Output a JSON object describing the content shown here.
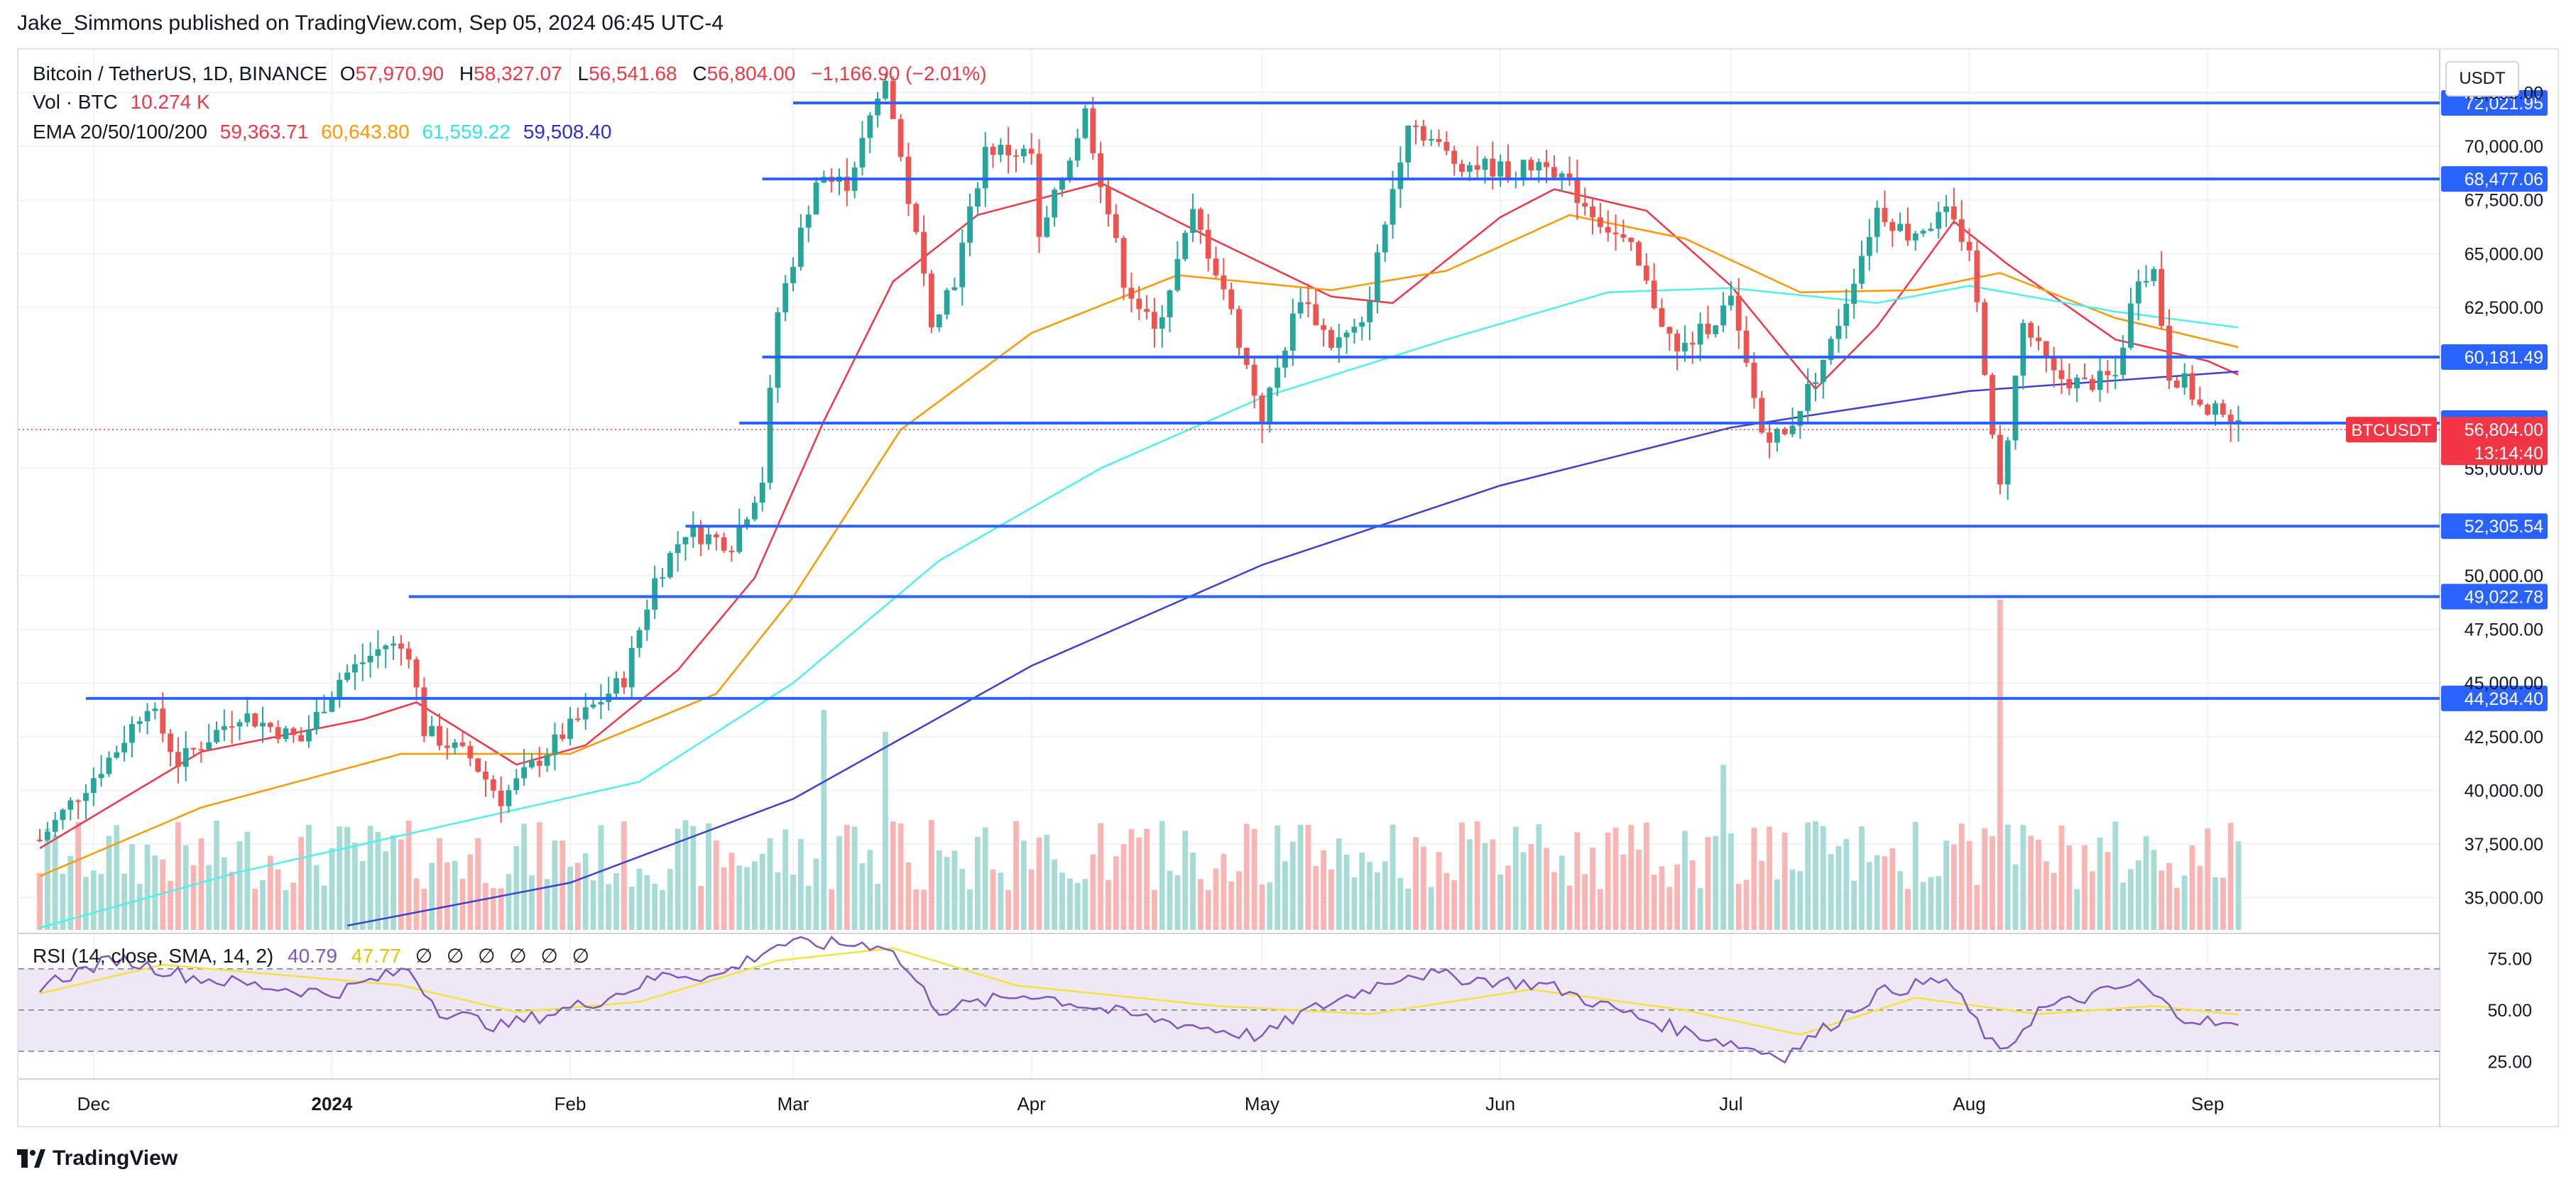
{
  "header": {
    "publisher": "Jake_Simmons published on TradingView.com, Sep 05, 2024 06:45 UTC-4"
  },
  "legend": {
    "symbol": "Bitcoin / TetherUS, 1D, BINANCE",
    "open_label": "O",
    "open": "57,970.90",
    "high_label": "H",
    "high": "58,327.07",
    "low_label": "L",
    "low": "56,541.68",
    "close_label": "C",
    "close": "56,804.00",
    "change": "−1,166.90 (−2.01%)",
    "volume_label": "Vol · BTC",
    "volume": "10.274 K",
    "ema_label": "EMA 20/50/100/200",
    "ema20": "59,363.71",
    "ema50": "60,643.80",
    "ema100": "61,559.22",
    "ema200": "59,508.40"
  },
  "rsi_legend": {
    "label": "RSI (14, close, SMA, 14, 2)",
    "rsi": "40.79",
    "sma": "47.77",
    "empty_1": "∅",
    "empty_2": "∅",
    "empty_3": "∅",
    "empty_4": "∅",
    "empty_5": "∅",
    "empty_6": "∅"
  },
  "currency": "USDT",
  "brand": "TradingView",
  "colors": {
    "up": "#26a69a",
    "down": "#ef5350",
    "ema20": "#f23645",
    "ema50": "#ff9800",
    "ema100": "#4df0f0",
    "ema200": "#3f3fd6",
    "level": "#2962ff",
    "rsi": "#7e57c2",
    "rsi_sma": "#f5e23a",
    "rsi_band": "#ede7f6",
    "price_tag": "#f23645"
  },
  "chart_data": {
    "type": "candlestick",
    "symbol": "BTCUSDT",
    "interval": "1D",
    "x_range": [
      "2023-11-24",
      "2024-10-01"
    ],
    "y_range": [
      33500,
      74500
    ],
    "y_ticks": [
      35000,
      37500,
      40000,
      42500,
      45000,
      47500,
      50000,
      55000,
      62500,
      65000,
      67500,
      70000,
      72500
    ],
    "y_tick_labels": [
      "35,000.00",
      "37,500.00",
      "40,000.00",
      "42,500.00",
      "45,000.00",
      "47,500.00",
      "50,000.00",
      "55,000.00",
      "62,500.00",
      "65,000.00",
      "67,500.00",
      "70,000.00",
      "72,500.00"
    ],
    "x_labels": [
      {
        "date": "2023-12-01",
        "label": "Dec",
        "bold": false
      },
      {
        "date": "2024-01-01",
        "label": "2024",
        "bold": true
      },
      {
        "date": "2024-02-01",
        "label": "Feb",
        "bold": false
      },
      {
        "date": "2024-03-01",
        "label": "Mar",
        "bold": false
      },
      {
        "date": "2024-04-01",
        "label": "Apr",
        "bold": false
      },
      {
        "date": "2024-05-01",
        "label": "May",
        "bold": false
      },
      {
        "date": "2024-06-01",
        "label": "Jun",
        "bold": false
      },
      {
        "date": "2024-07-01",
        "label": "Jul",
        "bold": false
      },
      {
        "date": "2024-08-01",
        "label": "Aug",
        "bold": false
      },
      {
        "date": "2024-09-01",
        "label": "Sep",
        "bold": false
      }
    ],
    "price_path": [
      [
        "2023-11-24",
        37700
      ],
      [
        "2023-12-04",
        41900
      ],
      [
        "2023-12-08",
        44100
      ],
      [
        "2023-12-12",
        41300
      ],
      [
        "2023-12-20",
        43600
      ],
      [
        "2023-12-28",
        42300
      ],
      [
        "2024-01-02",
        45200
      ],
      [
        "2024-01-08",
        46800
      ],
      [
        "2024-01-11",
        46500
      ],
      [
        "2024-01-13",
        42800
      ],
      [
        "2024-01-19",
        41500
      ],
      [
        "2024-01-23",
        39600
      ],
      [
        "2024-01-31",
        42600
      ],
      [
        "2024-02-08",
        45200
      ],
      [
        "2024-02-12",
        49800
      ],
      [
        "2024-02-16",
        52100
      ],
      [
        "2024-02-22",
        51500
      ],
      [
        "2024-02-26",
        54500
      ],
      [
        "2024-02-28",
        62300
      ],
      [
        "2024-03-04",
        68400
      ],
      [
        "2024-03-08",
        68300
      ],
      [
        "2024-03-13",
        73100
      ],
      [
        "2024-03-19",
        62000
      ],
      [
        "2024-03-22",
        63800
      ],
      [
        "2024-03-26",
        69900
      ],
      [
        "2024-04-01",
        69600
      ],
      [
        "2024-04-02",
        65500
      ],
      [
        "2024-04-08",
        71600
      ],
      [
        "2024-04-13",
        63800
      ],
      [
        "2024-04-17",
        61300
      ],
      [
        "2024-04-22",
        66800
      ],
      [
        "2024-04-26",
        63400
      ],
      [
        "2024-05-01",
        57300
      ],
      [
        "2024-05-06",
        63100
      ],
      [
        "2024-05-10",
        60800
      ],
      [
        "2024-05-14",
        61500
      ],
      [
        "2024-05-20",
        71300
      ],
      [
        "2024-05-26",
        69300
      ],
      [
        "2024-06-03",
        68800
      ],
      [
        "2024-06-07",
        69400
      ],
      [
        "2024-06-12",
        67300
      ],
      [
        "2024-06-18",
        65100
      ],
      [
        "2024-06-24",
        60300
      ],
      [
        "2024-07-01",
        62700
      ],
      [
        "2024-07-05",
        56700
      ],
      [
        "2024-07-08",
        56500
      ],
      [
        "2024-07-14",
        60800
      ],
      [
        "2024-07-20",
        67100
      ],
      [
        "2024-07-24",
        65900
      ],
      [
        "2024-07-29",
        66800
      ],
      [
        "2024-08-01",
        65300
      ],
      [
        "2024-08-05",
        54100
      ],
      [
        "2024-08-08",
        61700
      ],
      [
        "2024-08-12",
        59300
      ],
      [
        "2024-08-16",
        58900
      ],
      [
        "2024-08-20",
        59300
      ],
      [
        "2024-08-23",
        64100
      ],
      [
        "2024-08-25",
        64200
      ],
      [
        "2024-08-27",
        59400
      ],
      [
        "2024-08-29",
        59000
      ],
      [
        "2024-09-01",
        57300
      ],
      [
        "2024-09-03",
        57900
      ],
      [
        "2024-09-05",
        56804
      ]
    ],
    "ema_paths": {
      "EMA 20": [
        [
          "2023-11-24",
          37300
        ],
        [
          "2023-12-15",
          41800
        ],
        [
          "2024-01-05",
          43300
        ],
        [
          "2024-01-12",
          44100
        ],
        [
          "2024-01-25",
          41200
        ],
        [
          "2024-02-03",
          42100
        ],
        [
          "2024-02-15",
          45600
        ],
        [
          "2024-02-25",
          49900
        ],
        [
          "2024-03-05",
          57200
        ],
        [
          "2024-03-14",
          63700
        ],
        [
          "2024-03-25",
          66800
        ],
        [
          "2024-04-10",
          68300
        ],
        [
          "2024-04-25",
          65600
        ],
        [
          "2024-05-10",
          63000
        ],
        [
          "2024-05-18",
          62700
        ],
        [
          "2024-06-01",
          66700
        ],
        [
          "2024-06-08",
          68000
        ],
        [
          "2024-06-20",
          67000
        ],
        [
          "2024-07-01",
          63500
        ],
        [
          "2024-07-12",
          58700
        ],
        [
          "2024-07-20",
          61600
        ],
        [
          "2024-07-30",
          66500
        ],
        [
          "2024-08-06",
          64500
        ],
        [
          "2024-08-20",
          61000
        ],
        [
          "2024-09-01",
          60000
        ],
        [
          "2024-09-05",
          59364
        ]
      ],
      "EMA 50": [
        [
          "2023-11-24",
          36000
        ],
        [
          "2023-12-15",
          39200
        ],
        [
          "2024-01-10",
          41700
        ],
        [
          "2024-02-01",
          41700
        ],
        [
          "2024-02-20",
          44500
        ],
        [
          "2024-03-01",
          49000
        ],
        [
          "2024-03-15",
          56800
        ],
        [
          "2024-04-01",
          61300
        ],
        [
          "2024-04-20",
          64000
        ],
        [
          "2024-05-10",
          63300
        ],
        [
          "2024-05-25",
          64200
        ],
        [
          "2024-06-10",
          66800
        ],
        [
          "2024-06-25",
          65700
        ],
        [
          "2024-07-10",
          63200
        ],
        [
          "2024-07-25",
          63300
        ],
        [
          "2024-08-05",
          64100
        ],
        [
          "2024-08-20",
          62000
        ],
        [
          "2024-09-05",
          60644
        ]
      ],
      "EMA 100": [
        [
          "2023-11-24",
          33600
        ],
        [
          "2023-12-20",
          36200
        ],
        [
          "2024-01-20",
          38700
        ],
        [
          "2024-02-10",
          40400
        ],
        [
          "2024-03-01",
          45000
        ],
        [
          "2024-03-20",
          50700
        ],
        [
          "2024-04-10",
          55000
        ],
        [
          "2024-05-01",
          58300
        ],
        [
          "2024-05-25",
          61000
        ],
        [
          "2024-06-15",
          63200
        ],
        [
          "2024-07-01",
          63400
        ],
        [
          "2024-07-20",
          62700
        ],
        [
          "2024-08-01",
          63500
        ],
        [
          "2024-08-20",
          62300
        ],
        [
          "2024-09-05",
          61559
        ]
      ],
      "EMA 200": [
        [
          "2024-01-03",
          33700
        ],
        [
          "2024-02-01",
          35700
        ],
        [
          "2024-03-01",
          39600
        ],
        [
          "2024-04-01",
          45800
        ],
        [
          "2024-05-01",
          50500
        ],
        [
          "2024-06-01",
          54200
        ],
        [
          "2024-07-01",
          56900
        ],
        [
          "2024-08-01",
          58600
        ],
        [
          "2024-09-05",
          59508
        ]
      ]
    },
    "levels": [
      {
        "value": 72021.95,
        "label": "72,021.95",
        "from": "2024-03-01"
      },
      {
        "value": 68477.06,
        "label": "68,477.06",
        "from": "2024-02-26"
      },
      {
        "value": 60181.49,
        "label": "60,181.49",
        "from": "2024-02-26"
      },
      {
        "value": 57108.03,
        "label": "57,108.03",
        "from": "2024-02-23"
      },
      {
        "value": 52305.54,
        "label": "52,305.54",
        "from": "2024-02-16"
      },
      {
        "value": 49022.78,
        "label": "49,022.78",
        "from": "2024-01-11"
      },
      {
        "value": 44284.4,
        "label": "44,284.40",
        "from": "2023-11-30"
      }
    ],
    "last_price": {
      "value": 56804.0,
      "label": "56,804.00",
      "symbol": "BTCUSDT",
      "countdown": "13:14:40"
    },
    "volume_spikes": [
      [
        "2024-03-05",
        1.0
      ],
      [
        "2024-08-05",
        1.5
      ],
      [
        "2024-06-30",
        0.75
      ],
      [
        "2024-03-13",
        0.9
      ]
    ],
    "rsi": {
      "y_range": [
        20,
        82
      ],
      "ticks": [
        25,
        50,
        75
      ],
      "tick_labels": [
        "25.00",
        "50.00",
        "75.00"
      ],
      "bands": [
        30,
        50,
        70
      ],
      "rsi_path": [
        [
          "2023-11-24",
          62
        ],
        [
          "2023-12-04",
          75
        ],
        [
          "2023-12-14",
          66
        ],
        [
          "2023-12-22",
          62
        ],
        [
          "2024-01-01",
          58
        ],
        [
          "2024-01-11",
          70
        ],
        [
          "2024-01-15",
          50
        ],
        [
          "2024-01-23",
          42
        ],
        [
          "2024-02-05",
          55
        ],
        [
          "2024-02-14",
          68
        ],
        [
          "2024-02-20",
          66
        ],
        [
          "2024-02-28",
          82
        ],
        [
          "2024-03-05",
          82
        ],
        [
          "2024-03-13",
          82
        ],
        [
          "2024-03-20",
          50
        ],
        [
          "2024-04-01",
          58
        ],
        [
          "2024-04-13",
          48
        ],
        [
          "2024-05-01",
          37
        ],
        [
          "2024-05-06",
          48
        ],
        [
          "2024-05-20",
          68
        ],
        [
          "2024-06-07",
          62
        ],
        [
          "2024-06-20",
          45
        ],
        [
          "2024-07-05",
          30
        ],
        [
          "2024-07-08",
          28
        ],
        [
          "2024-07-20",
          58
        ],
        [
          "2024-07-29",
          65
        ],
        [
          "2024-08-05",
          28
        ],
        [
          "2024-08-10",
          50
        ],
        [
          "2024-08-23",
          63
        ],
        [
          "2024-08-28",
          48
        ],
        [
          "2024-09-05",
          40.79
        ]
      ],
      "sma_path": [
        [
          "2023-11-24",
          58
        ],
        [
          "2023-12-10",
          72
        ],
        [
          "2024-01-10",
          62
        ],
        [
          "2024-01-25",
          49
        ],
        [
          "2024-02-10",
          54
        ],
        [
          "2024-02-28",
          74
        ],
        [
          "2024-03-14",
          80
        ],
        [
          "2024-03-30",
          62
        ],
        [
          "2024-04-25",
          52
        ],
        [
          "2024-05-15",
          48
        ],
        [
          "2024-06-05",
          60
        ],
        [
          "2024-06-25",
          50
        ],
        [
          "2024-07-10",
          38
        ],
        [
          "2024-07-25",
          56
        ],
        [
          "2024-08-10",
          48
        ],
        [
          "2024-08-25",
          52
        ],
        [
          "2024-09-05",
          47.77
        ]
      ]
    }
  }
}
